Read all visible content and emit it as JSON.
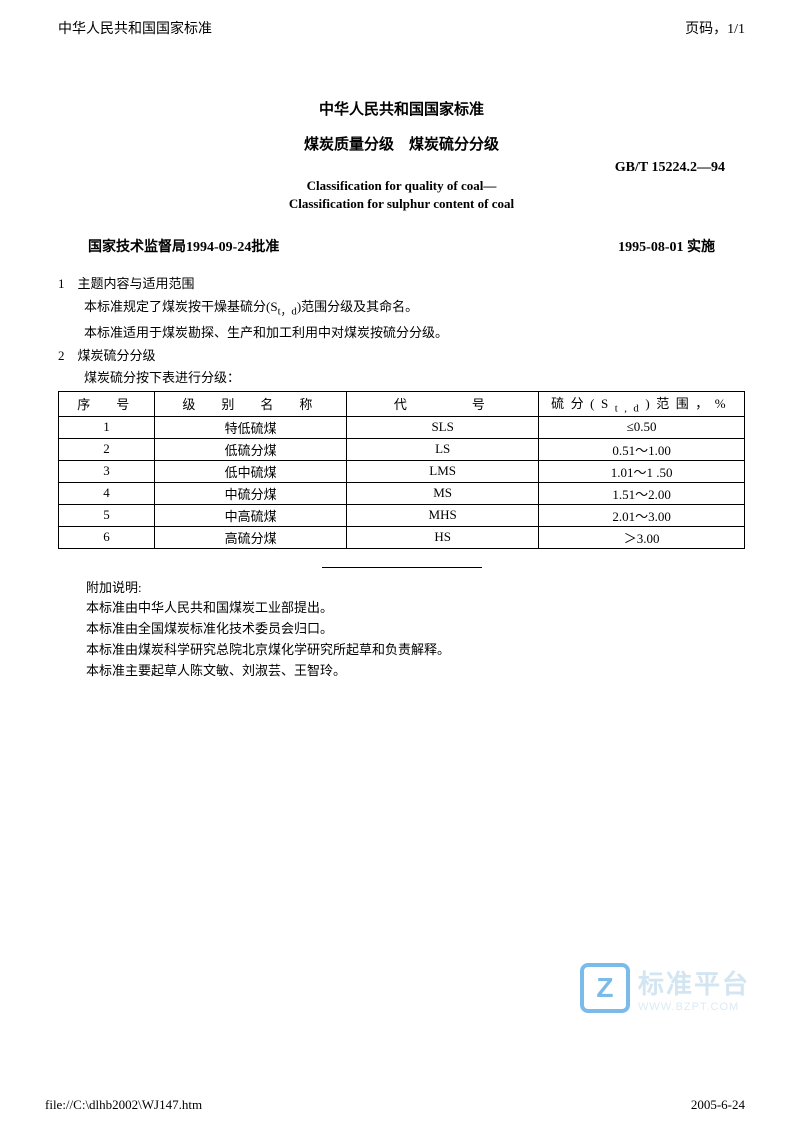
{
  "header": {
    "left": "中华人民共和国国家标准",
    "right": "页码，1/1"
  },
  "titles": {
    "main": "中华人民共和国国家标准",
    "sub": "煤炭质量分级　煤炭硫分分级",
    "std_code": "GB/T 15224.2—94",
    "en1": "Classification for quality of coal—",
    "en2": "Classification for sulphur content of coal"
  },
  "approval": {
    "left": "国家技术监督局1994-09-24批准",
    "right": "1995-08-01 实施"
  },
  "sections": {
    "s1_num": "1",
    "s1_title": "主题内容与适用范围",
    "s1_p1a": "本标准规定了煤炭按干燥基硫分(S",
    "s1_p1_sub": "t，d",
    "s1_p1b": ")范围分级及其命名。",
    "s1_p2": "本标准适用于煤炭勘探、生产和加工利用中对煤炭按硫分分级。",
    "s2_num": "2",
    "s2_title": "煤炭硫分分级",
    "s2_p1": "煤炭硫分按下表进行分级："
  },
  "table": {
    "columns": [
      "序　号",
      "级　别　名　称",
      "代　　　号",
      "硫分(St,d)范围，%"
    ],
    "rows": [
      [
        "1",
        "特低硫煤",
        "SLS",
        "≤0.50"
      ],
      [
        "2",
        "低硫分煤",
        "LS",
        "0.51～1.00"
      ],
      [
        "3",
        "低中硫煤",
        "LMS",
        "1.01～1 .50"
      ],
      [
        "4",
        "中硫分煤",
        "MS",
        "1.51～2.00"
      ],
      [
        "5",
        "中高硫煤",
        "MHS",
        "2.01～3.00"
      ],
      [
        "6",
        "高硫分煤",
        "HS",
        "＞3.00"
      ]
    ]
  },
  "appendix": {
    "heading": "附加说明:",
    "l1": "本标准由中华人民共和国煤炭工业部提出。",
    "l2": "本标准由全国煤炭标准化技术委员会归口。",
    "l3": "本标准由煤炭科学研究总院北京煤化学研究所起草和负责解释。",
    "l4": "本标准主要起草人陈文敏、刘淑芸、王智玲。"
  },
  "watermark": {
    "icon_letter": "Z",
    "cn": "标准平台",
    "url": "WWW.BZPT.COM",
    "icon_color": "#6db4e8",
    "text_color": "#cfe3f0"
  },
  "footer": {
    "left": "file://C:\\dlhb2002\\WJ147.htm",
    "right": "2005-6-24"
  },
  "colors": {
    "text": "#000000",
    "background": "#ffffff",
    "table_border": "#000000"
  }
}
